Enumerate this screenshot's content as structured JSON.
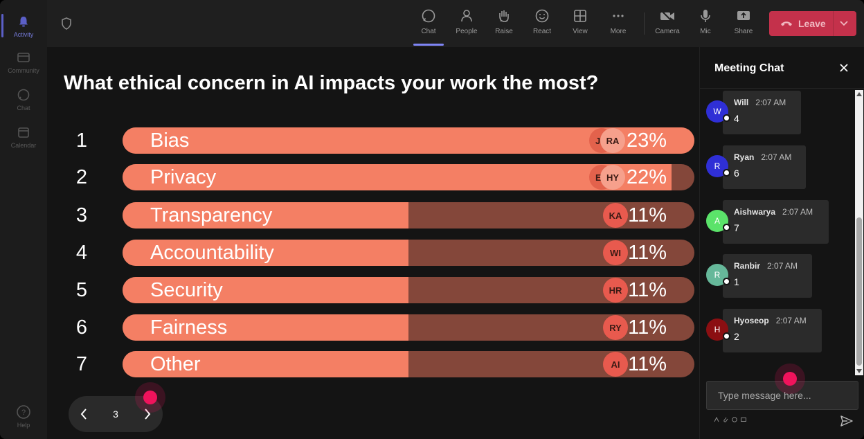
{
  "rail": {
    "items": [
      {
        "label": "Activity",
        "icon": "bell-icon"
      },
      {
        "label": "Community",
        "icon": "community-icon"
      },
      {
        "label": "Chat",
        "icon": "chat-icon"
      },
      {
        "label": "Calendar",
        "icon": "calendar-icon"
      }
    ],
    "help_label": "Help"
  },
  "toolbar": {
    "chat": "Chat",
    "people": "People",
    "raise": "Raise",
    "react": "React",
    "view": "View",
    "more": "More",
    "camera": "Camera",
    "mic": "Mic",
    "share": "Share",
    "leave": "Leave"
  },
  "poll": {
    "question": "What ethical concern in AI impacts your work the most?",
    "options": [
      {
        "num": "1",
        "label": "Bias",
        "pct_text": "23%",
        "fill": 1.0,
        "avatars": [
          "JU",
          "RA"
        ]
      },
      {
        "num": "2",
        "label": "Privacy",
        "pct_text": "22%",
        "fill": 0.96,
        "avatars": [
          "EM",
          "HY"
        ]
      },
      {
        "num": "3",
        "label": "Transparency",
        "pct_text": "11%",
        "fill": 0.5,
        "avatars": [
          "KA"
        ]
      },
      {
        "num": "4",
        "label": "Accountability",
        "pct_text": "11%",
        "fill": 0.5,
        "avatars": [
          "WI"
        ]
      },
      {
        "num": "5",
        "label": "Security",
        "pct_text": "11%",
        "fill": 0.5,
        "avatars": [
          "HR"
        ]
      },
      {
        "num": "6",
        "label": "Fairness",
        "pct_text": "11%",
        "fill": 0.5,
        "avatars": [
          "RY"
        ]
      },
      {
        "num": "7",
        "label": "Other",
        "pct_text": "11%",
        "fill": 0.5,
        "avatars": [
          "AI"
        ]
      }
    ],
    "page": "3"
  },
  "chat": {
    "title": "Meeting Chat",
    "messages": [
      {
        "initial": "W",
        "name": "Will",
        "time": "2:07 AM",
        "text": "4",
        "color": "#2f2fd6"
      },
      {
        "initial": "R",
        "name": "Ryan",
        "time": "2:07 AM",
        "text": "6",
        "color": "#2f2fd6"
      },
      {
        "initial": "A",
        "name": "Aishwarya",
        "time": "2:07 AM",
        "text": "7",
        "color": "#5be36a"
      },
      {
        "initial": "R",
        "name": "Ranbir",
        "time": "2:07 AM",
        "text": "1",
        "color": "#66b89a"
      },
      {
        "initial": "H",
        "name": "Hyoseop",
        "time": "2:07 AM",
        "text": "2",
        "color": "#8b0f12"
      }
    ],
    "placeholder": "Type message here..."
  },
  "colors": {
    "bar_fill": "#f47f64",
    "bar_track": "#84473a",
    "leave": "#c4314b",
    "accent": "#7f85f5",
    "cursor": "#f0135c"
  }
}
